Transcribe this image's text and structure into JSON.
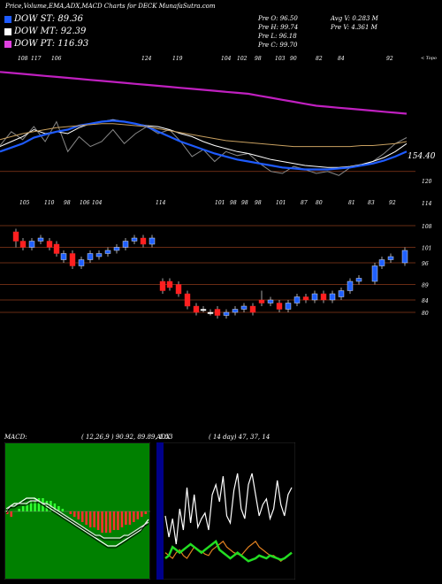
{
  "title": "Price,Volume,EMA,ADX,MACD Charts for DECK MunafaSutra.com",
  "legend": [
    {
      "label": "DOW ST: 89.36",
      "color": "#1e5bff"
    },
    {
      "label": "DOW MT: 92.39",
      "color": "#ffffff"
    },
    {
      "label": "DOW PT: 116.93",
      "color": "#e040e0"
    }
  ],
  "ohlc": {
    "open": "Pre O: 96.50",
    "high": "Pre H: 99.74",
    "low": "Pre L: 96.18",
    "close": "Pre C: 99.70",
    "avg_vol": "Avg V: 0.283 M",
    "pre_vol": "Pre V: 4.361 M"
  },
  "chart_data": [
    {
      "type": "line",
      "name": "price-ema",
      "x_top_labels": [
        "108",
        "117",
        "106",
        "124",
        "119",
        "104",
        "102",
        "98",
        "103",
        "90",
        "82",
        "84",
        "92"
      ],
      "x_bottom_labels": [
        "105",
        "110",
        "98",
        "106",
        "104",
        "114",
        "101",
        "98",
        "98",
        "98",
        "101",
        "87",
        "80",
        "81",
        "83",
        "92"
      ],
      "y_labels": [
        "154.40",
        "120",
        "114",
        "108",
        "101",
        "96",
        "89",
        "84",
        "80"
      ],
      "corner_label": "< Topo",
      "price_level_label": "154.40",
      "series": [
        {
          "color": "#888888",
          "values": [
            146,
            160,
            152,
            165,
            150,
            170,
            140,
            155,
            145,
            150,
            162,
            148,
            158,
            165,
            158,
            162,
            150,
            135,
            142,
            130,
            140,
            136,
            138,
            128,
            120,
            118,
            125,
            122,
            118,
            120,
            116,
            124,
            126,
            130,
            138,
            148,
            154
          ]
        },
        {
          "color": "#ffffff",
          "values": [
            145,
            150,
            155,
            162,
            158,
            160,
            158,
            164,
            168,
            170,
            172,
            170,
            168,
            166,
            165,
            162,
            158,
            155,
            150,
            146,
            143,
            140,
            138,
            135,
            132,
            130,
            128,
            126,
            125,
            124,
            124,
            125,
            127,
            130,
            134,
            140,
            148
          ]
        },
        {
          "color": "#1e5bff",
          "values": [
            140,
            144,
            148,
            154,
            157,
            160,
            162,
            166,
            168,
            170,
            171,
            170,
            168,
            165,
            160,
            155,
            150,
            146,
            142,
            138,
            135,
            132,
            130,
            128,
            126,
            124,
            123,
            122,
            122,
            122,
            123,
            124,
            126,
            128,
            131,
            135,
            140
          ]
        },
        {
          "color": "#c8a060",
          "values": [
            152,
            155,
            158,
            160,
            162,
            164,
            165,
            166,
            167,
            168,
            168,
            167,
            166,
            165,
            163,
            161,
            159,
            157,
            155,
            153,
            151,
            150,
            149,
            148,
            147,
            146,
            145,
            145,
            145,
            145,
            145,
            145,
            146,
            146,
            147,
            148,
            150
          ]
        },
        {
          "color": "#c020c0",
          "values": [
            220,
            219,
            218,
            217,
            216,
            215,
            214,
            213,
            212,
            211,
            210,
            209,
            208,
            207,
            206,
            205,
            204,
            203,
            202,
            201,
            200,
            199,
            198,
            196,
            194,
            192,
            190,
            188,
            186,
            185,
            184,
            183,
            182,
            181,
            180,
            179,
            178
          ]
        }
      ],
      "candles": [
        {
          "o": 106,
          "c": 103,
          "h": 107,
          "l": 101,
          "dir": "down"
        },
        {
          "o": 103,
          "c": 101,
          "h": 104,
          "l": 100,
          "dir": "down"
        },
        {
          "o": 101,
          "c": 103,
          "h": 104,
          "l": 100,
          "dir": "up"
        },
        {
          "o": 103,
          "c": 104,
          "h": 105,
          "l": 102,
          "dir": "up"
        },
        {
          "o": 103,
          "c": 101,
          "h": 104,
          "l": 100,
          "dir": "down"
        },
        {
          "o": 102,
          "c": 99,
          "h": 103,
          "l": 98,
          "dir": "down"
        },
        {
          "o": 97,
          "c": 99,
          "h": 100,
          "l": 96,
          "dir": "up"
        },
        {
          "o": 99,
          "c": 95,
          "h": 100,
          "l": 94,
          "dir": "down"
        },
        {
          "o": 95,
          "c": 97,
          "h": 98,
          "l": 94,
          "dir": "up"
        },
        {
          "o": 97,
          "c": 99,
          "h": 100,
          "l": 96,
          "dir": "up"
        },
        {
          "o": 98,
          "c": 99,
          "h": 100,
          "l": 97,
          "dir": "up"
        },
        {
          "o": 99,
          "c": 100,
          "h": 101,
          "l": 98,
          "dir": "up"
        },
        {
          "o": 100,
          "c": 101,
          "h": 102,
          "l": 99,
          "dir": "up"
        },
        {
          "o": 101,
          "c": 103,
          "h": 104,
          "l": 100,
          "dir": "up"
        },
        {
          "o": 103,
          "c": 104,
          "h": 105,
          "l": 102,
          "dir": "up"
        },
        {
          "o": 104,
          "c": 102,
          "h": 105,
          "l": 101,
          "dir": "down"
        },
        {
          "o": 102,
          "c": 104,
          "h": 105,
          "l": 101,
          "dir": "up"
        },
        {
          "o": 90,
          "c": 87,
          "h": 91,
          "l": 86,
          "dir": "down"
        },
        {
          "o": 90,
          "c": 88,
          "h": 91,
          "l": 87,
          "dir": "down"
        },
        {
          "o": 89,
          "c": 86,
          "h": 90,
          "l": 85,
          "dir": "down"
        },
        {
          "o": 86,
          "c": 82,
          "h": 87,
          "l": 81,
          "dir": "down"
        },
        {
          "o": 82,
          "c": 80,
          "h": 83,
          "l": 79,
          "dir": "down"
        },
        {
          "o": 81,
          "c": 81,
          "h": 82,
          "l": 80,
          "dir": "flat"
        },
        {
          "o": 80,
          "c": 80,
          "h": 81,
          "l": 79,
          "dir": "flat"
        },
        {
          "o": 81,
          "c": 79,
          "h": 82,
          "l": 78,
          "dir": "down"
        },
        {
          "o": 79,
          "c": 80,
          "h": 81,
          "l": 78,
          "dir": "up"
        },
        {
          "o": 80,
          "c": 81,
          "h": 82,
          "l": 79,
          "dir": "up"
        },
        {
          "o": 81,
          "c": 82,
          "h": 83,
          "l": 80,
          "dir": "up"
        },
        {
          "o": 82,
          "c": 80,
          "h": 83,
          "l": 79,
          "dir": "down"
        },
        {
          "o": 84,
          "c": 83,
          "h": 87,
          "l": 82,
          "dir": "down"
        },
        {
          "o": 83,
          "c": 84,
          "h": 85,
          "l": 82,
          "dir": "up"
        },
        {
          "o": 83,
          "c": 81,
          "h": 84,
          "l": 80,
          "dir": "down"
        },
        {
          "o": 81,
          "c": 83,
          "h": 84,
          "l": 80,
          "dir": "up"
        },
        {
          "o": 83,
          "c": 85,
          "h": 86,
          "l": 82,
          "dir": "up"
        },
        {
          "o": 85,
          "c": 84,
          "h": 86,
          "l": 83,
          "dir": "down"
        },
        {
          "o": 84,
          "c": 86,
          "h": 87,
          "l": 83,
          "dir": "up"
        },
        {
          "o": 86,
          "c": 84,
          "h": 87,
          "l": 83,
          "dir": "down"
        },
        {
          "o": 84,
          "c": 86,
          "h": 87,
          "l": 83,
          "dir": "up"
        },
        {
          "o": 85,
          "c": 87,
          "h": 88,
          "l": 84,
          "dir": "up"
        },
        {
          "o": 87,
          "c": 90,
          "h": 91,
          "l": 86,
          "dir": "up"
        },
        {
          "o": 90,
          "c": 91,
          "h": 92,
          "l": 89,
          "dir": "up"
        },
        {
          "o": 90,
          "c": 95,
          "h": 96,
          "l": 89,
          "dir": "up"
        },
        {
          "o": 95,
          "c": 97,
          "h": 98,
          "l": 94,
          "dir": "up"
        },
        {
          "o": 97,
          "c": 98,
          "h": 99,
          "l": 96,
          "dir": "up"
        },
        {
          "o": 96,
          "c": 100,
          "h": 101,
          "l": 95,
          "dir": "up"
        }
      ]
    },
    {
      "type": "bar",
      "name": "macd",
      "title": "MACD:",
      "params": "( 12,26,9 ) 90.92, 89.89, 1.53",
      "histogram": [
        -1,
        -2,
        0,
        1,
        2,
        3,
        4,
        5,
        5,
        5,
        4,
        4,
        3,
        2,
        1,
        0,
        -1,
        -2,
        -3,
        -4,
        -5,
        -6,
        -6,
        -7,
        -8,
        -8,
        -8,
        -7,
        -7,
        -6,
        -5,
        -5,
        -4,
        -3,
        -2,
        -1
      ],
      "lines": [
        [
          0,
          2,
          3,
          3,
          4,
          5,
          5,
          5,
          4,
          3,
          2,
          1,
          0,
          -1,
          -2,
          -3,
          -4,
          -5,
          -6,
          -7,
          -8,
          -9,
          -10,
          -11,
          -12,
          -13,
          -13,
          -13,
          -12,
          -11,
          -10,
          -9,
          -8,
          -7,
          -5,
          -3
        ],
        [
          1,
          2,
          2,
          3,
          3,
          3,
          4,
          4,
          4,
          3,
          3,
          2,
          1,
          0,
          -1,
          -2,
          -3,
          -4,
          -5,
          -6,
          -7,
          -8,
          -9,
          -9,
          -10,
          -10,
          -10,
          -10,
          -10,
          -9,
          -9,
          -8,
          -7,
          -6,
          -5,
          -4
        ]
      ]
    },
    {
      "type": "line",
      "name": "adx",
      "title": "ADX",
      "params": "( 14 day) 47, 37, 14",
      "series": [
        {
          "color": "#ffffff",
          "values": [
            40,
            25,
            38,
            20,
            45,
            30,
            60,
            35,
            55,
            32,
            38,
            42,
            30,
            55,
            62,
            50,
            68,
            40,
            35,
            58,
            70,
            45,
            38,
            62,
            70,
            55,
            40,
            48,
            52,
            38,
            45,
            65,
            48,
            40,
            55,
            60
          ]
        },
        {
          "color": "#e08020",
          "values": [
            14,
            12,
            10,
            14,
            16,
            12,
            10,
            14,
            18,
            16,
            15,
            13,
            12,
            16,
            18,
            20,
            22,
            18,
            16,
            14,
            13,
            12,
            15,
            18,
            20,
            22,
            18,
            16,
            14,
            12,
            12,
            10,
            8,
            10,
            12,
            14
          ]
        },
        {
          "color": "#22dd22",
          "values": [
            10,
            12,
            18,
            16,
            14,
            16,
            18,
            20,
            18,
            16,
            14,
            16,
            18,
            20,
            22,
            16,
            14,
            12,
            10,
            12,
            14,
            12,
            10,
            8,
            9,
            10,
            12,
            11,
            10,
            12,
            11,
            10,
            9,
            10,
            12,
            14
          ]
        }
      ]
    }
  ]
}
